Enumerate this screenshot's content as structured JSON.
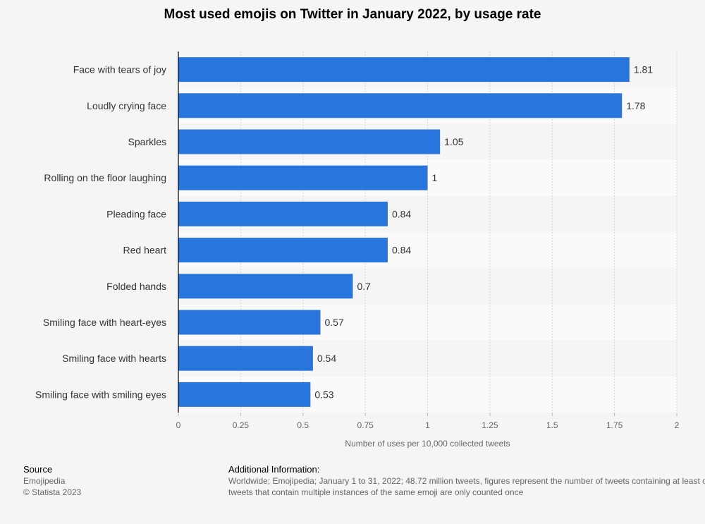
{
  "chart_data": {
    "type": "bar",
    "orientation": "horizontal",
    "title": "Most used emojis on Twitter in January 2022, by usage rate",
    "xlabel": "Number of uses per 10,000 collected tweets",
    "ylabel": "",
    "categories": [
      "Face with tears of joy",
      "Loudly crying face",
      "Sparkles",
      "Rolling on the floor laughing",
      "Pleading face",
      "Red heart",
      "Folded hands",
      "Smiling face with heart-eyes",
      "Smiling face with hearts",
      "Smiling face with smiling eyes"
    ],
    "values": [
      1.81,
      1.78,
      1.05,
      1,
      0.84,
      0.84,
      0.7,
      0.57,
      0.54,
      0.53
    ],
    "value_labels": [
      "1.81",
      "1.78",
      "1.05",
      "1",
      "0.84",
      "0.84",
      "0.7",
      "0.57",
      "0.54",
      "0.53"
    ],
    "xlim": [
      0,
      2
    ],
    "ticks": [
      0,
      0.25,
      0.5,
      0.75,
      1,
      1.25,
      1.5,
      1.75,
      2
    ],
    "tick_labels": [
      "0",
      "0.25",
      "0.5",
      "0.75",
      "1",
      "1.25",
      "1.5",
      "1.75",
      "2"
    ],
    "grid": true,
    "bar_color": "#2876dd",
    "band_colors": [
      "#f5f5f5",
      "#fafafa"
    ]
  },
  "footer": {
    "source_heading": "Source",
    "source_lines": [
      "Emojipedia",
      "© Statista 2023"
    ],
    "info_heading": "Additional Information:",
    "info_lines": [
      "Worldwide; Emojipedia; January 1 to 31, 2022; 48.72 million tweets, figures represent the number of tweets containing at least one instance of the emoji;",
      "tweets that contain multiple instances of the same emoji are only counted once"
    ]
  }
}
